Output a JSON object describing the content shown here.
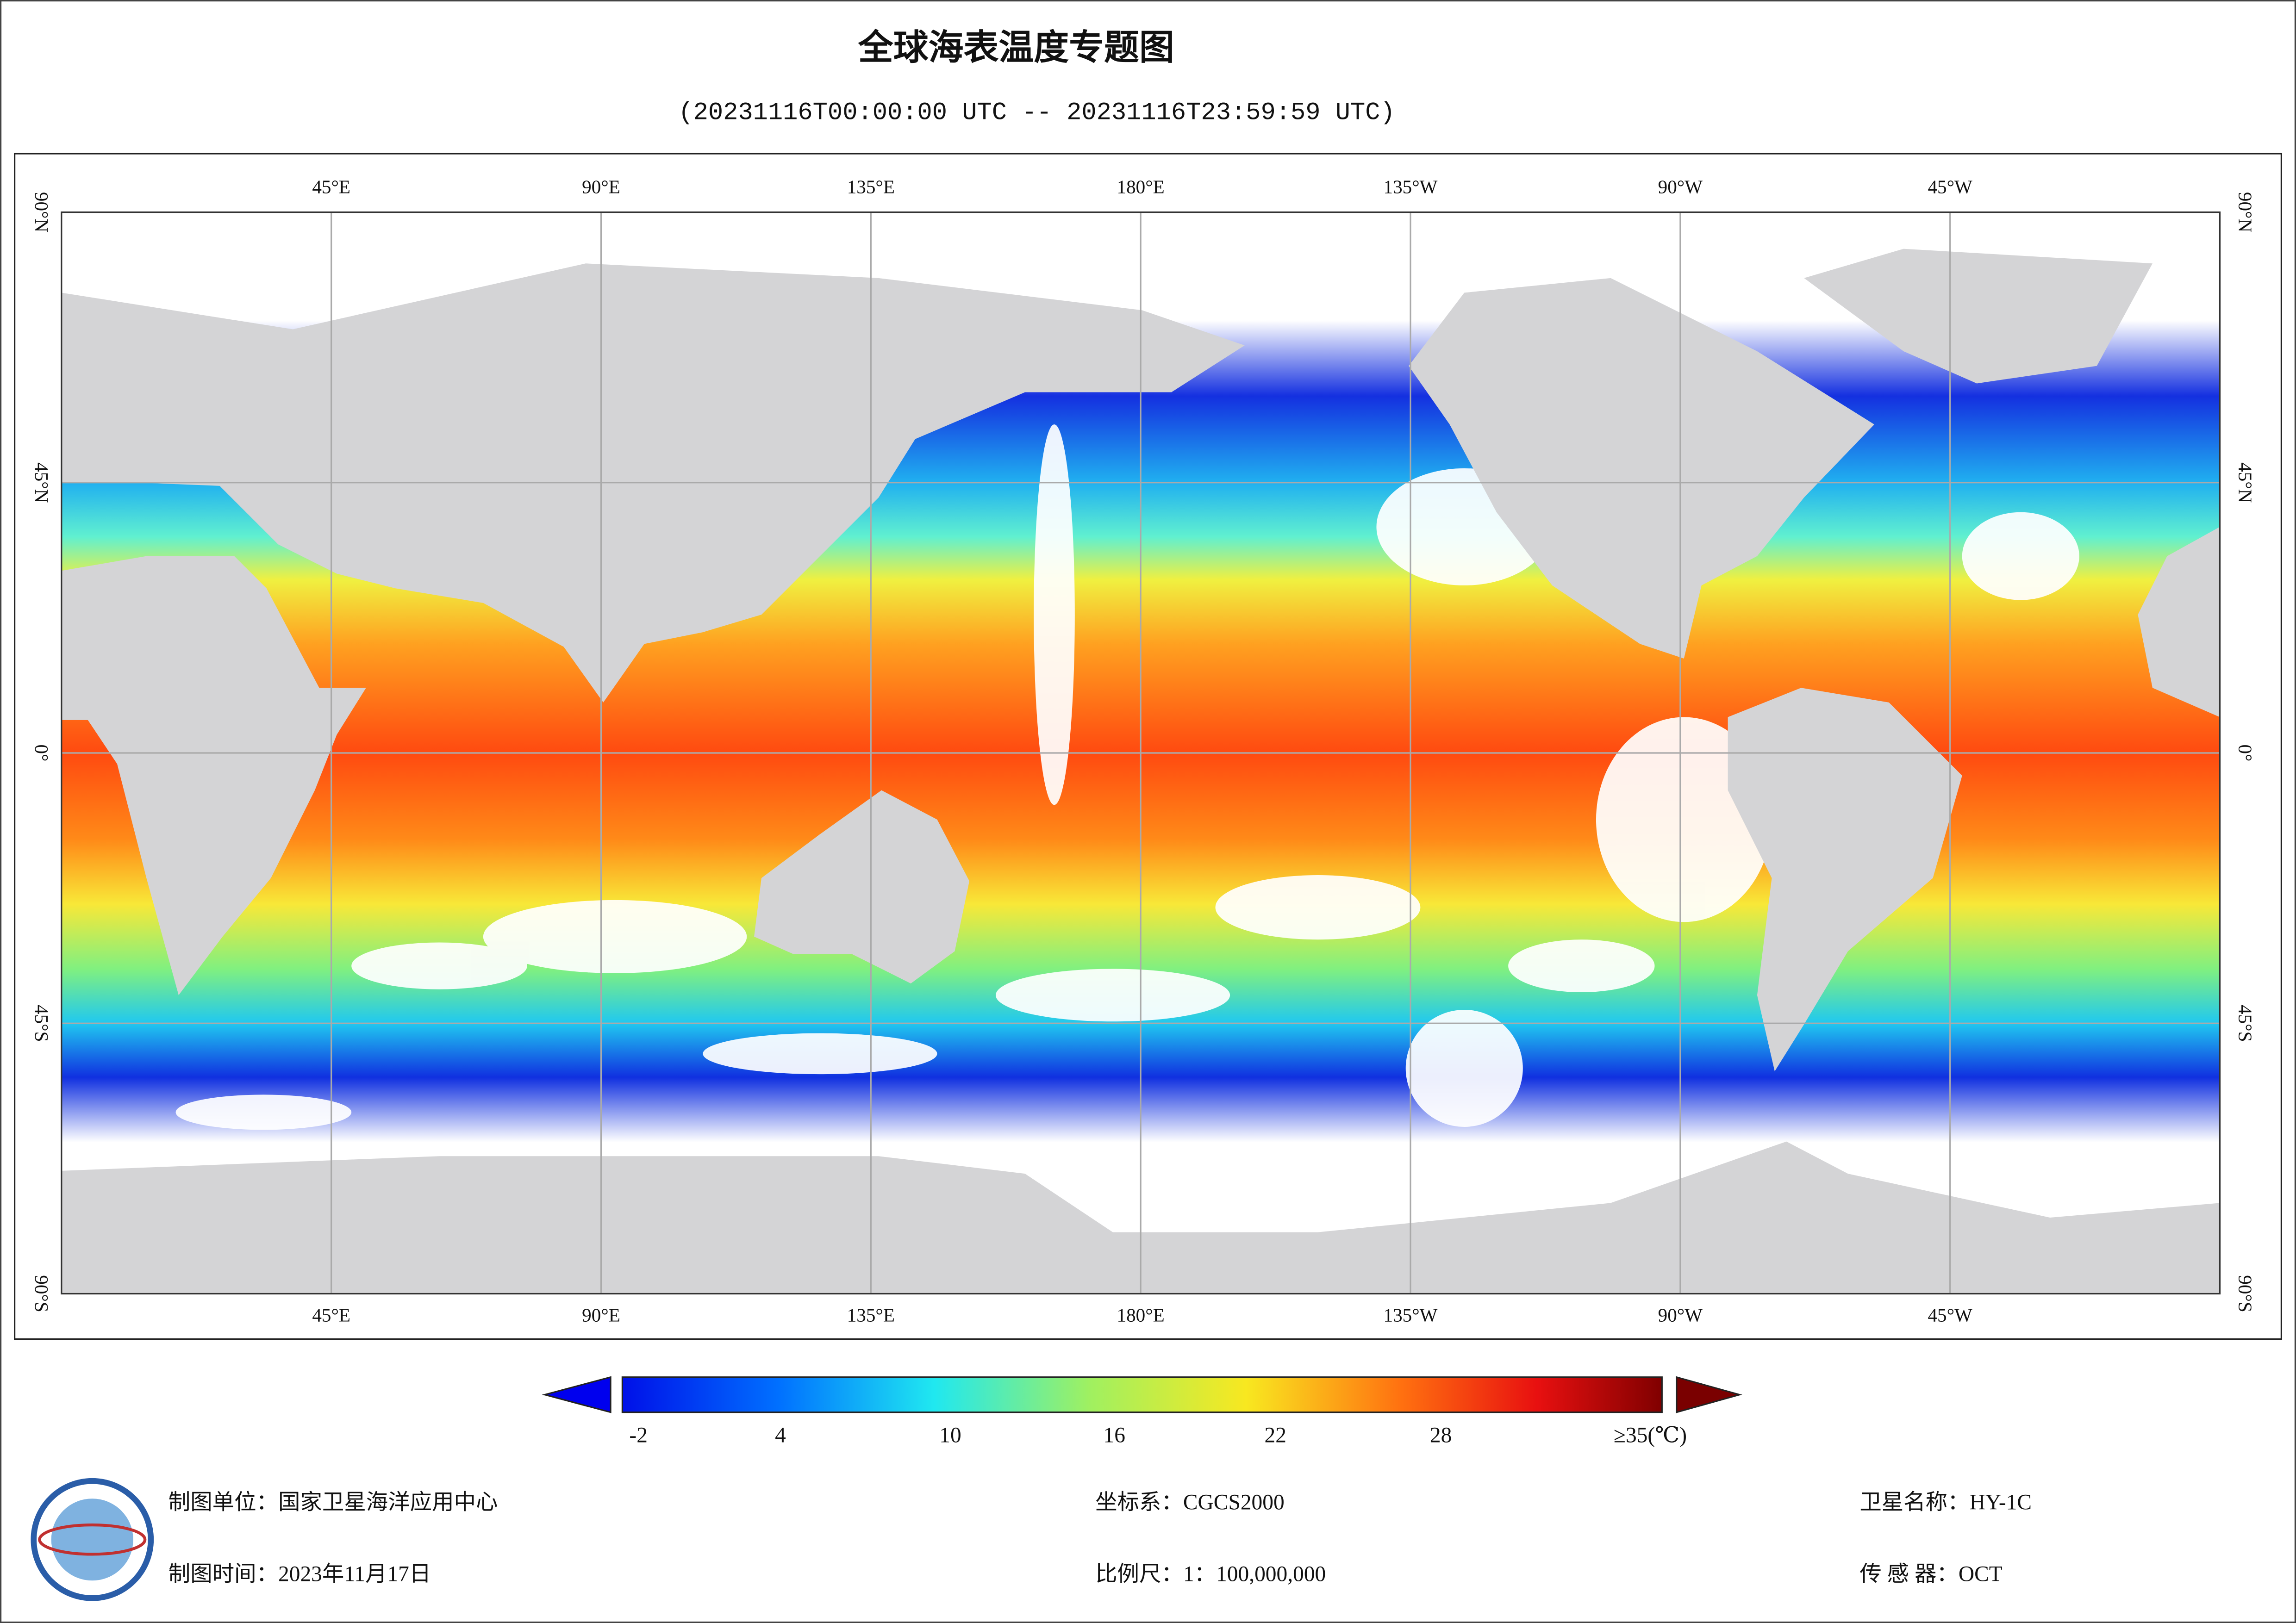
{
  "header": {
    "title": "全球海表温度专题图",
    "subtitle": "(20231116T00:00:00 UTC -- 20231116T23:59:59 UTC)"
  },
  "map": {
    "lon_labels": [
      "45°E",
      "90°E",
      "135°E",
      "180°E",
      "135°W",
      "90°W",
      "45°W"
    ],
    "lat_labels": [
      "90°N",
      "45°N",
      "0°",
      "45°S",
      "90°S"
    ]
  },
  "colorbar": {
    "ticks": [
      "-2",
      "4",
      "10",
      "16",
      "22",
      "28",
      "≥35(℃)"
    ]
  },
  "footer": {
    "unit": "制图单位：国家卫星海洋应用中心",
    "time": "制图时间：2023年11月17日",
    "crs": "坐标系：CGCS2000",
    "scale": "比例尺：1：100,000,000",
    "satellite": "卫星名称：HY-1C",
    "sensor": "传 感 器：OCT"
  }
}
